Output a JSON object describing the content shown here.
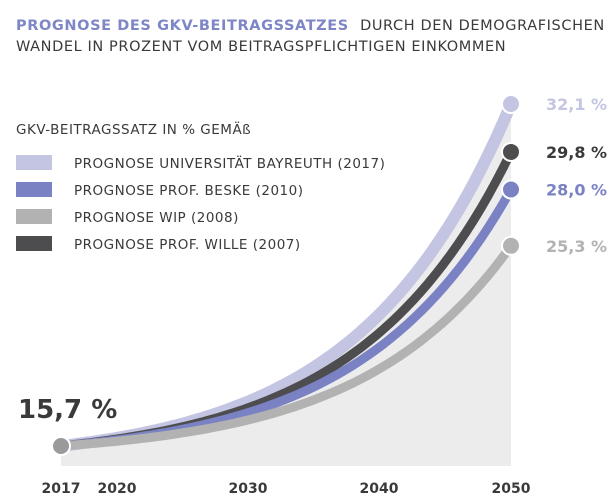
{
  "chart_data": {
    "type": "line",
    "title_accent": "PROGNOSE DES GKV-BEITRAGSSATZES",
    "title_rest": "DURCH DEN DEMOGRAFISCHEN",
    "title_line2": "WANDEL IN PROZENT VOM BEITRAGSPFLICHTIGEN EINKOMMEN",
    "legend_title": "GKV-BEITRAGSSATZ IN % GEMÄß",
    "x_ticks": [
      "2017",
      "2020",
      "2030",
      "2040",
      "2050"
    ],
    "x_tick_values": [
      2017,
      2020,
      2030,
      2040,
      2050
    ],
    "xlim": [
      2017,
      2050
    ],
    "ylim": [
      15.7,
      32.1
    ],
    "grid": false,
    "legend_position": "top-left",
    "start": {
      "x": 2017,
      "y": 15.7,
      "label": "15,7 %"
    },
    "series": [
      {
        "name": "PROGNOSE UNIVERSITÄT BAYREUTH (2017)",
        "color": "#c3c5e2",
        "x": [
          2017,
          2050
        ],
        "y": [
          15.7,
          32.1
        ],
        "end_label": "32,1 %"
      },
      {
        "name": "PROGNOSE PROF. BESKE (2010)",
        "color": "#7a82c4",
        "x": [
          2017,
          2050
        ],
        "y": [
          15.7,
          28.0
        ],
        "end_label": "28,0 %"
      },
      {
        "name": "PROGNOSE WIP (2008)",
        "color": "#b2b2b2",
        "x": [
          2017,
          2050
        ],
        "y": [
          15.7,
          25.3
        ],
        "end_label": "25,3 %"
      },
      {
        "name": "PROGNOSE PROF. WILLE (2007)",
        "color": "#4d4d4f",
        "x": [
          2017,
          2050
        ],
        "y": [
          15.7,
          29.8
        ],
        "end_label": "29,8 %"
      }
    ],
    "area_color": "#ececec"
  }
}
